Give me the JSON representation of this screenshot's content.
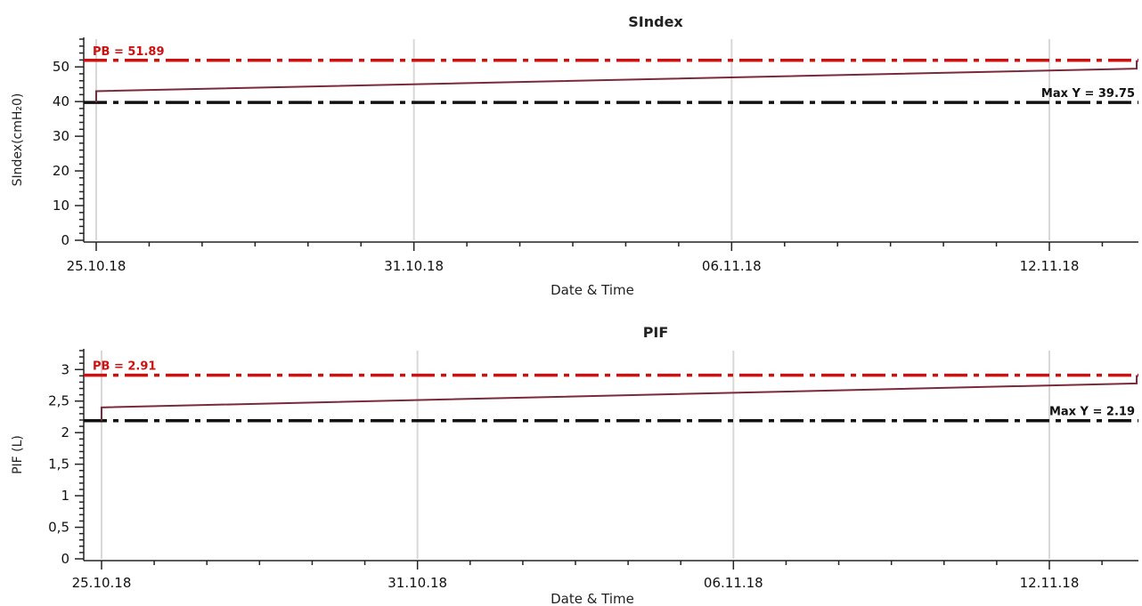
{
  "chart_data": [
    {
      "type": "line",
      "title": "SIndex",
      "xlabel": "Date & Time",
      "ylabel": "SIndex(cmH₂0)",
      "x_ticks": [
        "25.10.18",
        "31.10.18",
        "06.11.18",
        "12.11.18"
      ],
      "y_ticks": [
        "0",
        "10",
        "20",
        "30",
        "40",
        "50"
      ],
      "ylim": [
        0,
        58
      ],
      "grid": true,
      "series": [
        {
          "color": "#7a2a3a",
          "points": [
            {
              "x": "25.10.18",
              "y": 39.75
            },
            {
              "x": "25.10.18",
              "y": 43.0
            },
            {
              "x": "15.11.18",
              "y": 49.5
            },
            {
              "x": "15.11.18",
              "y": 51.89
            }
          ]
        }
      ],
      "reference_lines": [
        {
          "label": "PB = 51.89",
          "value": 51.89,
          "color": "#cc1111",
          "style": "dash-dot",
          "label_position": "top-left"
        },
        {
          "label": "Max Y = 39.75",
          "value": 39.75,
          "color": "#111111",
          "style": "dash-dot",
          "label_position": "top-right"
        }
      ]
    },
    {
      "type": "line",
      "title": "PIF",
      "xlabel": "Date & Time",
      "ylabel": "PIF (L)",
      "x_ticks": [
        "25.10.18",
        "31.10.18",
        "06.11.18",
        "12.11.18"
      ],
      "y_ticks": [
        "0",
        "0,5",
        "1",
        "1,5",
        "2",
        "2,5",
        "3"
      ],
      "ylim": [
        0,
        3.3
      ],
      "grid": true,
      "series": [
        {
          "color": "#7a2a3a",
          "points": [
            {
              "x": "25.10.18",
              "y": 2.19
            },
            {
              "x": "25.10.18",
              "y": 2.4
            },
            {
              "x": "15.11.18",
              "y": 2.78
            },
            {
              "x": "15.11.18",
              "y": 2.91
            }
          ]
        }
      ],
      "reference_lines": [
        {
          "label": "PB = 2.91",
          "value": 2.91,
          "color": "#cc1111",
          "style": "dash-dot",
          "label_position": "top-left"
        },
        {
          "label": "Max Y = 2.19",
          "value": 2.19,
          "color": "#111111",
          "style": "dash-dot",
          "label_position": "top-right"
        }
      ]
    }
  ]
}
